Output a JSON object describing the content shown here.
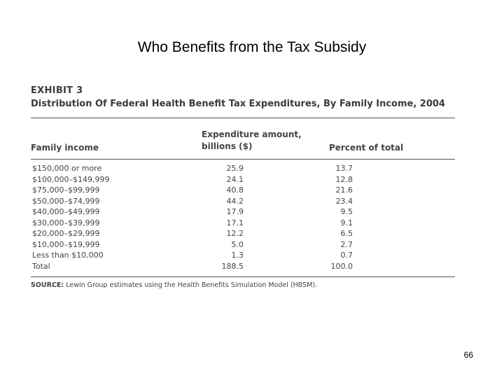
{
  "slide": {
    "title": "Who Benefits from the Tax Subsidy",
    "page_number": "66"
  },
  "exhibit": {
    "label": "EXHIBIT 3",
    "title": "Distribution Of Federal Health Benefit Tax Expenditures, By Family Income, 2004",
    "columns": {
      "income": "Family income",
      "amount_line1": "Expenditure amount,",
      "amount_line2": "billions ($)",
      "percent": "Percent of total"
    },
    "rows": [
      {
        "income": "$150,000 or more",
        "amount": "25.9",
        "percent": "13.7"
      },
      {
        "income": "$100,000–$149,999",
        "amount": "24.1",
        "percent": "12.8"
      },
      {
        "income": "$75,000–$99,999",
        "amount": "40.8",
        "percent": "21.6"
      },
      {
        "income": "$50,000–$74,999",
        "amount": "44.2",
        "percent": "23.4"
      },
      {
        "income": "$40,000–$49,999",
        "amount": "17.9",
        "percent": "9.5"
      },
      {
        "income": "$30,000–$39,999",
        "amount": "17.1",
        "percent": "9.1"
      },
      {
        "income": "$20,000–$29,999",
        "amount": "12.2",
        "percent": "6.5"
      },
      {
        "income": "$10,000–$19,999",
        "amount": "5.0",
        "percent": "2.7"
      },
      {
        "income": "Less than $10,000",
        "amount": "1.3",
        "percent": "0.7"
      },
      {
        "income": "Total",
        "amount": "188.5",
        "percent": "100.0"
      }
    ],
    "source_label": "SOURCE:",
    "source_text": " Lewin Group estimates using the Health Benefits Simulation Model (HBSM)."
  }
}
